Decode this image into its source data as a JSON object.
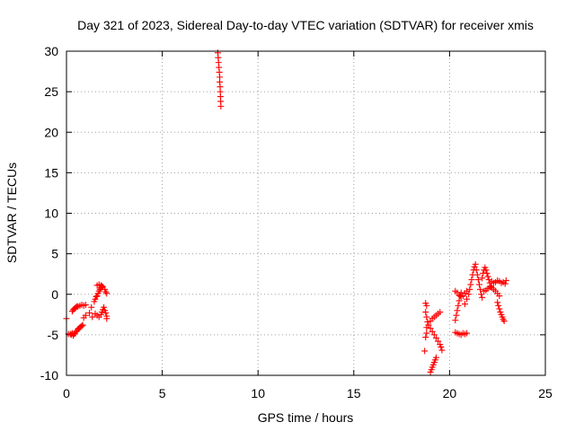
{
  "chart_data": {
    "type": "scatter",
    "title": "Day 321 of 2023, Sidereal Day-to-day VTEC variation (SDTVAR) for receiver xmis",
    "xlabel": "GPS time / hours",
    "ylabel": "SDTVAR / TECUs",
    "xlim": [
      0,
      25
    ],
    "ylim": [
      -10,
      30
    ],
    "xticks": [
      "0",
      "5",
      "10",
      "15",
      "20",
      "25"
    ],
    "yticks": [
      "-10",
      "-5",
      "0",
      "5",
      "10",
      "15",
      "20",
      "25",
      "30"
    ],
    "grid": true,
    "marker": "plus",
    "color": "#ff0000",
    "series": [
      {
        "points": [
          [
            0.0,
            -3.0
          ],
          [
            0.1,
            -4.9
          ],
          [
            0.2,
            -4.9
          ],
          [
            0.25,
            -5.0
          ],
          [
            0.3,
            -4.8
          ],
          [
            0.35,
            -5.1
          ],
          [
            0.4,
            -4.9
          ],
          [
            0.45,
            -4.8
          ],
          [
            0.5,
            -4.6
          ],
          [
            0.55,
            -4.5
          ],
          [
            0.6,
            -4.3
          ],
          [
            0.65,
            -4.2
          ],
          [
            0.7,
            -4.1
          ],
          [
            0.75,
            -4.0
          ],
          [
            0.8,
            -3.9
          ],
          [
            0.85,
            -3.8
          ],
          [
            0.3,
            -2.1
          ],
          [
            0.35,
            -1.9
          ],
          [
            0.4,
            -1.8
          ],
          [
            0.45,
            -1.7
          ],
          [
            0.5,
            -1.6
          ],
          [
            0.55,
            -1.5
          ],
          [
            0.6,
            -1.5
          ],
          [
            0.7,
            -1.4
          ],
          [
            0.8,
            -1.3
          ],
          [
            0.9,
            -1.4
          ],
          [
            1.0,
            -1.3
          ],
          [
            0.9,
            -2.9
          ],
          [
            1.0,
            -2.6
          ],
          [
            1.2,
            -2.3
          ],
          [
            1.3,
            -1.6
          ],
          [
            1.35,
            -2.8
          ],
          [
            1.45,
            -0.9
          ],
          [
            1.5,
            -0.6
          ],
          [
            1.55,
            -0.3
          ],
          [
            1.6,
            -0.2
          ],
          [
            1.65,
            0.1
          ],
          [
            1.7,
            0.4
          ],
          [
            1.75,
            0.6
          ],
          [
            1.8,
            0.8
          ],
          [
            1.85,
            1.0
          ],
          [
            1.6,
            1.1
          ],
          [
            1.7,
            1.2
          ],
          [
            1.8,
            1.1
          ],
          [
            1.9,
            0.9
          ],
          [
            2.0,
            0.6
          ],
          [
            2.05,
            0.3
          ],
          [
            2.1,
            0.1
          ],
          [
            1.5,
            -2.4
          ],
          [
            1.6,
            -2.6
          ],
          [
            1.7,
            -2.8
          ],
          [
            1.8,
            -2.5
          ],
          [
            1.85,
            -2.2
          ],
          [
            1.9,
            -1.9
          ],
          [
            1.95,
            -1.6
          ],
          [
            2.0,
            -2.0
          ],
          [
            2.05,
            -2.3
          ],
          [
            2.1,
            -2.7
          ],
          [
            2.1,
            -3.0
          ],
          [
            7.9,
            29.8
          ],
          [
            7.92,
            29.2
          ],
          [
            7.94,
            28.6
          ],
          [
            7.96,
            28.0
          ],
          [
            7.98,
            27.4
          ],
          [
            8.0,
            26.8
          ],
          [
            8.0,
            26.2
          ],
          [
            8.02,
            25.6
          ],
          [
            8.03,
            25.0
          ],
          [
            8.04,
            24.4
          ],
          [
            8.05,
            23.8
          ],
          [
            8.06,
            23.2
          ],
          [
            18.75,
            -1.1
          ],
          [
            18.8,
            -1.4
          ],
          [
            18.75,
            -2.2
          ],
          [
            18.8,
            -2.8
          ],
          [
            18.85,
            -3.4
          ],
          [
            18.8,
            -4.1
          ],
          [
            18.8,
            -4.8
          ],
          [
            18.75,
            -5.3
          ],
          [
            18.7,
            -7.0
          ],
          [
            19.0,
            -3.3
          ],
          [
            19.1,
            -3.0
          ],
          [
            19.2,
            -2.8
          ],
          [
            19.3,
            -2.6
          ],
          [
            19.4,
            -2.4
          ],
          [
            19.5,
            -2.2
          ],
          [
            18.9,
            -3.8
          ],
          [
            19.0,
            -4.2
          ],
          [
            19.1,
            -4.6
          ],
          [
            19.2,
            -5.0
          ],
          [
            19.3,
            -5.4
          ],
          [
            19.4,
            -5.8
          ],
          [
            19.5,
            -6.2
          ],
          [
            19.55,
            -6.5
          ],
          [
            19.6,
            -6.9
          ],
          [
            19.0,
            -9.6
          ],
          [
            19.05,
            -9.3
          ],
          [
            19.1,
            -9.0
          ],
          [
            19.15,
            -8.7
          ],
          [
            19.2,
            -8.4
          ],
          [
            19.25,
            -8.1
          ],
          [
            19.3,
            -7.8
          ],
          [
            20.3,
            -4.7
          ],
          [
            20.4,
            -4.8
          ],
          [
            20.5,
            -4.9
          ],
          [
            20.6,
            -5.0
          ],
          [
            20.7,
            -4.8
          ],
          [
            20.8,
            -4.9
          ],
          [
            20.9,
            -4.8
          ],
          [
            20.3,
            -3.2
          ],
          [
            20.35,
            -2.6
          ],
          [
            20.4,
            -2.0
          ],
          [
            20.45,
            -1.4
          ],
          [
            20.5,
            -0.8
          ],
          [
            20.55,
            -0.2
          ],
          [
            20.6,
            0.2
          ],
          [
            20.3,
            0.4
          ],
          [
            20.4,
            0.2
          ],
          [
            20.5,
            -0.1
          ],
          [
            20.6,
            -0.3
          ],
          [
            20.7,
            -0.2
          ],
          [
            20.8,
            0.1
          ],
          [
            20.9,
            0.4
          ],
          [
            20.8,
            -1.2
          ],
          [
            20.9,
            -0.6
          ],
          [
            21.0,
            0.0
          ],
          [
            21.05,
            0.6
          ],
          [
            21.1,
            1.2
          ],
          [
            21.15,
            1.8
          ],
          [
            21.2,
            2.4
          ],
          [
            21.25,
            3.0
          ],
          [
            21.3,
            3.4
          ],
          [
            21.35,
            3.7
          ],
          [
            21.4,
            3.0
          ],
          [
            21.45,
            2.4
          ],
          [
            21.5,
            1.8
          ],
          [
            21.55,
            1.2
          ],
          [
            21.6,
            0.6
          ],
          [
            21.65,
            0.0
          ],
          [
            21.7,
            -0.4
          ],
          [
            21.7,
            2.0
          ],
          [
            21.75,
            2.6
          ],
          [
            21.8,
            3.0
          ],
          [
            21.85,
            3.3
          ],
          [
            21.9,
            3.0
          ],
          [
            21.95,
            2.6
          ],
          [
            22.0,
            2.2
          ],
          [
            22.05,
            1.8
          ],
          [
            22.1,
            1.4
          ],
          [
            22.15,
            1.0
          ],
          [
            21.8,
            0.4
          ],
          [
            21.9,
            0.5
          ],
          [
            22.0,
            0.7
          ],
          [
            22.1,
            0.9
          ],
          [
            22.2,
            0.8
          ],
          [
            22.3,
            0.6
          ],
          [
            22.4,
            0.4
          ],
          [
            22.5,
            0.1
          ],
          [
            22.6,
            -0.2
          ],
          [
            22.2,
            1.6
          ],
          [
            22.3,
            1.4
          ],
          [
            22.4,
            1.5
          ],
          [
            22.5,
            1.7
          ],
          [
            22.6,
            1.6
          ],
          [
            22.7,
            1.4
          ],
          [
            22.8,
            1.5
          ],
          [
            22.9,
            1.3
          ],
          [
            22.95,
            1.7
          ],
          [
            22.5,
            -1.0
          ],
          [
            22.55,
            -1.4
          ],
          [
            22.6,
            -1.8
          ],
          [
            22.65,
            -2.2
          ],
          [
            22.7,
            -2.5
          ],
          [
            22.75,
            -2.8
          ],
          [
            22.8,
            -3.1
          ],
          [
            22.85,
            -3.3
          ]
        ]
      }
    ]
  }
}
